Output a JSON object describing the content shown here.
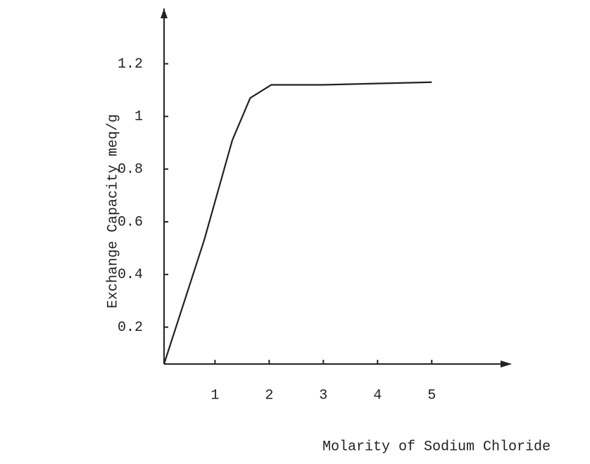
{
  "chart_data": {
    "type": "line",
    "x_label": "Molarity of Sodium Chloride",
    "y_label": "Exchange Capacity meq/g",
    "x": [
      0.06,
      0.8,
      1.32,
      1.65,
      2.04,
      2.99,
      5.0
    ],
    "values": [
      0.06,
      0.53,
      0.91,
      1.07,
      1.12,
      1.12,
      1.13
    ],
    "color": "#222222",
    "xlim": [
      0.06,
      6.4
    ],
    "xticks": [
      1,
      2,
      3,
      4,
      5
    ],
    "ylim": [
      0.06,
      1.41
    ],
    "yticks": [
      0.2,
      0.4,
      0.6,
      0.8,
      1,
      1.2
    ],
    "grid": false
  }
}
